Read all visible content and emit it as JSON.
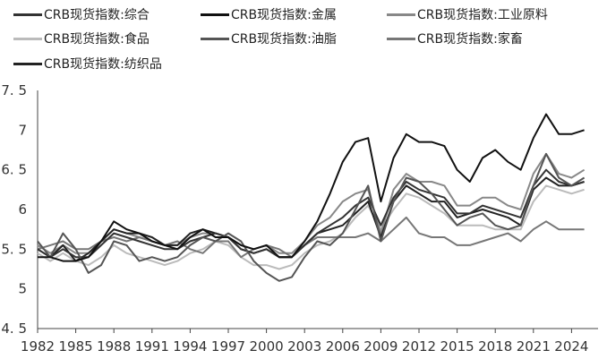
{
  "chart_data": {
    "type": "line",
    "title": "",
    "xlabel": "",
    "ylabel": "",
    "xlim": [
      1982,
      2025.7
    ],
    "ylim": [
      4.5,
      7.5
    ],
    "y_ticks": [
      "4.5",
      "5",
      "5.5",
      "6",
      "6.5",
      "7",
      "7.5"
    ],
    "x_ticks": [
      "1982",
      "1985",
      "1988",
      "1991",
      "1994",
      "1997",
      "2000",
      "2003",
      "2006",
      "2009",
      "2012",
      "2015",
      "2018",
      "2021",
      "2024"
    ],
    "grid": false,
    "legend_placement": "top",
    "x": [
      1982,
      1983,
      1984,
      1985,
      1986,
      1987,
      1988,
      1989,
      1990,
      1991,
      1992,
      1993,
      1994,
      1995,
      1996,
      1997,
      1998,
      1999,
      2000,
      2001,
      2002,
      2003,
      2004,
      2005,
      2006,
      2007,
      2008,
      2009,
      2010,
      2011,
      2012,
      2013,
      2014,
      2015,
      2016,
      2017,
      2018,
      2019,
      2020,
      2021,
      2022,
      2023,
      2024,
      2025
    ],
    "series": [
      {
        "name": "CRB现货指数:综合",
        "color": "#333333",
        "values": [
          5.5,
          5.4,
          5.5,
          5.4,
          5.4,
          5.55,
          5.7,
          5.65,
          5.6,
          5.55,
          5.5,
          5.5,
          5.6,
          5.65,
          5.7,
          5.65,
          5.5,
          5.45,
          5.5,
          5.4,
          5.4,
          5.55,
          5.7,
          5.8,
          5.9,
          6.05,
          6.15,
          5.8,
          6.15,
          6.35,
          6.25,
          6.2,
          6.15,
          5.95,
          5.95,
          6.05,
          6.0,
          5.95,
          5.9,
          6.3,
          6.5,
          6.35,
          6.3,
          6.35
        ]
      },
      {
        "name": "CRB现货指数:金属",
        "color": "#111111",
        "values": [
          5.4,
          5.4,
          5.35,
          5.35,
          5.4,
          5.6,
          5.85,
          5.75,
          5.7,
          5.6,
          5.55,
          5.5,
          5.65,
          5.75,
          5.65,
          5.65,
          5.55,
          5.5,
          5.55,
          5.4,
          5.4,
          5.6,
          5.85,
          6.2,
          6.6,
          6.85,
          6.9,
          6.1,
          6.65,
          6.95,
          6.85,
          6.85,
          6.8,
          6.5,
          6.35,
          6.65,
          6.75,
          6.6,
          6.5,
          6.9,
          7.2,
          6.95,
          6.95,
          7.0
        ]
      },
      {
        "name": "CRB现货指数:工业原料",
        "color": "#888888",
        "values": [
          5.55,
          5.45,
          5.55,
          5.45,
          5.45,
          5.6,
          5.75,
          5.7,
          5.65,
          5.6,
          5.55,
          5.55,
          5.65,
          5.7,
          5.7,
          5.65,
          5.55,
          5.5,
          5.55,
          5.45,
          5.45,
          5.6,
          5.8,
          5.9,
          6.1,
          6.2,
          6.25,
          5.7,
          6.25,
          6.45,
          6.35,
          6.35,
          6.3,
          6.05,
          6.05,
          6.15,
          6.15,
          6.05,
          6.0,
          6.45,
          6.7,
          6.45,
          6.4,
          6.5
        ]
      },
      {
        "name": "CRB现货指数:食品",
        "color": "#bbbbbb",
        "values": [
          5.45,
          5.35,
          5.45,
          5.35,
          5.3,
          5.4,
          5.55,
          5.45,
          5.4,
          5.35,
          5.3,
          5.35,
          5.45,
          5.5,
          5.6,
          5.55,
          5.4,
          5.3,
          5.3,
          5.25,
          5.3,
          5.45,
          5.55,
          5.6,
          5.7,
          5.9,
          6.05,
          5.75,
          6.0,
          6.2,
          6.15,
          6.05,
          5.95,
          5.8,
          5.8,
          5.8,
          5.75,
          5.75,
          5.75,
          6.1,
          6.3,
          6.25,
          6.2,
          6.25
        ]
      },
      {
        "name": "CRB现货指数:油脂",
        "color": "#555555",
        "values": [
          5.6,
          5.4,
          5.7,
          5.5,
          5.2,
          5.3,
          5.6,
          5.55,
          5.35,
          5.4,
          5.35,
          5.4,
          5.55,
          5.65,
          5.6,
          5.7,
          5.6,
          5.35,
          5.2,
          5.1,
          5.15,
          5.4,
          5.6,
          5.55,
          5.7,
          6.0,
          6.3,
          5.6,
          6.1,
          6.4,
          6.35,
          6.2,
          6.0,
          5.8,
          5.9,
          5.95,
          5.8,
          5.75,
          5.8,
          6.3,
          6.7,
          6.4,
          6.3,
          6.4
        ]
      },
      {
        "name": "CRB现货指数:家畜",
        "color": "#777777",
        "values": [
          5.5,
          5.55,
          5.6,
          5.5,
          5.5,
          5.6,
          5.65,
          5.6,
          5.65,
          5.6,
          5.55,
          5.6,
          5.5,
          5.45,
          5.6,
          5.6,
          5.4,
          5.5,
          5.55,
          5.5,
          5.4,
          5.55,
          5.65,
          5.65,
          5.65,
          5.65,
          5.7,
          5.6,
          5.75,
          5.9,
          5.7,
          5.65,
          5.65,
          5.55,
          5.55,
          5.6,
          5.65,
          5.7,
          5.6,
          5.75,
          5.85,
          5.75,
          5.75,
          5.75
        ]
      },
      {
        "name": "CRB现货指数:纺织品",
        "color": "#222222",
        "values": [
          5.5,
          5.4,
          5.55,
          5.35,
          5.45,
          5.6,
          5.75,
          5.7,
          5.7,
          5.65,
          5.55,
          5.55,
          5.7,
          5.75,
          5.7,
          5.65,
          5.5,
          5.45,
          5.5,
          5.4,
          5.4,
          5.55,
          5.7,
          5.75,
          5.8,
          5.95,
          6.1,
          5.65,
          6.1,
          6.3,
          6.2,
          6.1,
          6.1,
          5.9,
          5.95,
          6.0,
          5.95,
          5.9,
          5.8,
          6.25,
          6.4,
          6.3,
          6.3,
          6.35
        ]
      }
    ]
  }
}
